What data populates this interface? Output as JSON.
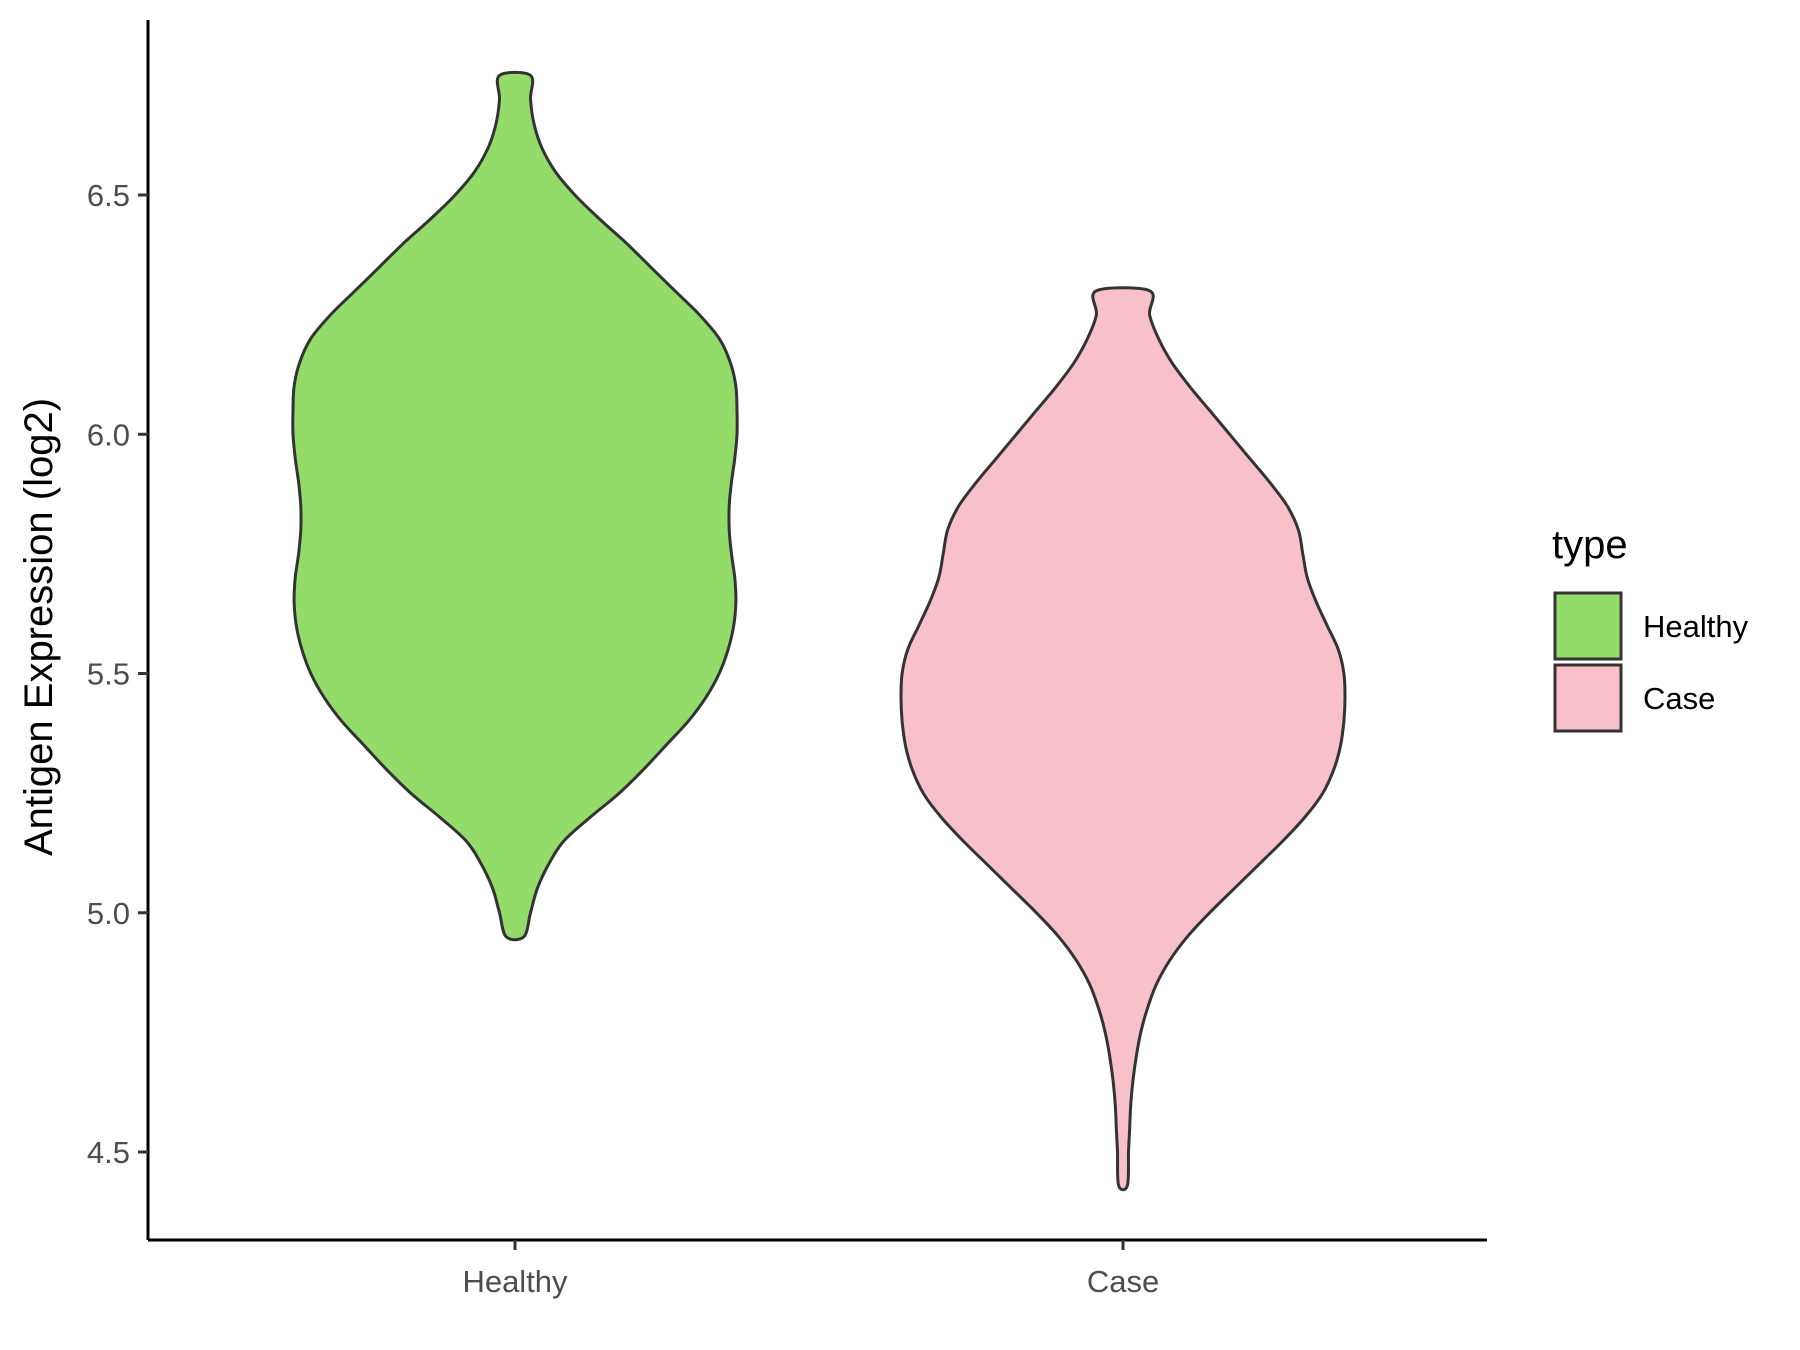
{
  "chart_data": {
    "type": "violin",
    "title": "",
    "xlabel": "",
    "ylabel": "Antigen Expression (log2)",
    "ylim": [
      4.35,
      6.86
    ],
    "yticks": [
      4.5,
      5.0,
      5.5,
      6.0,
      6.5
    ],
    "ytick_labels": [
      "4.5",
      "5.0",
      "5.5",
      "6.0",
      "6.5"
    ],
    "grid": false,
    "categories": [
      "Healthy",
      "Case"
    ],
    "legend": {
      "title": "type",
      "position": "right",
      "entries": [
        {
          "label": "Healthy",
          "color": "#93DC6A"
        },
        {
          "label": "Case",
          "color": "#F8C0CB"
        }
      ]
    },
    "series": [
      {
        "category": "Healthy",
        "color": "#93DC6A",
        "min": 4.95,
        "max": 6.75,
        "density_profile": [
          [
            4.95,
            0.04
          ],
          [
            5.0,
            0.07
          ],
          [
            5.05,
            0.1
          ],
          [
            5.1,
            0.15
          ],
          [
            5.15,
            0.22
          ],
          [
            5.2,
            0.34
          ],
          [
            5.25,
            0.47
          ],
          [
            5.3,
            0.58
          ],
          [
            5.35,
            0.68
          ],
          [
            5.4,
            0.78
          ],
          [
            5.45,
            0.86
          ],
          [
            5.5,
            0.92
          ],
          [
            5.55,
            0.96
          ],
          [
            5.6,
            0.985
          ],
          [
            5.65,
            0.995
          ],
          [
            5.7,
            0.99
          ],
          [
            5.75,
            0.975
          ],
          [
            5.8,
            0.965
          ],
          [
            5.85,
            0.965
          ],
          [
            5.9,
            0.975
          ],
          [
            5.95,
            0.99
          ],
          [
            6.0,
            1.0
          ],
          [
            6.05,
            1.0
          ],
          [
            6.1,
            0.995
          ],
          [
            6.15,
            0.97
          ],
          [
            6.2,
            0.92
          ],
          [
            6.25,
            0.83
          ],
          [
            6.3,
            0.72
          ],
          [
            6.35,
            0.61
          ],
          [
            6.4,
            0.5
          ],
          [
            6.45,
            0.38
          ],
          [
            6.5,
            0.27
          ],
          [
            6.55,
            0.18
          ],
          [
            6.6,
            0.12
          ],
          [
            6.65,
            0.085
          ],
          [
            6.7,
            0.07
          ],
          [
            6.75,
            0.07
          ]
        ]
      },
      {
        "category": "Case",
        "color": "#F8C0CB",
        "min": 4.43,
        "max": 6.3,
        "density_profile": [
          [
            4.43,
            0.02
          ],
          [
            4.5,
            0.025
          ],
          [
            4.55,
            0.03
          ],
          [
            4.6,
            0.035
          ],
          [
            4.65,
            0.045
          ],
          [
            4.7,
            0.06
          ],
          [
            4.75,
            0.08
          ],
          [
            4.8,
            0.11
          ],
          [
            4.85,
            0.15
          ],
          [
            4.9,
            0.21
          ],
          [
            4.95,
            0.29
          ],
          [
            5.0,
            0.39
          ],
          [
            5.05,
            0.5
          ],
          [
            5.1,
            0.61
          ],
          [
            5.15,
            0.72
          ],
          [
            5.2,
            0.82
          ],
          [
            5.25,
            0.9
          ],
          [
            5.3,
            0.95
          ],
          [
            5.35,
            0.98
          ],
          [
            5.4,
            0.995
          ],
          [
            5.45,
            1.0
          ],
          [
            5.5,
            0.995
          ],
          [
            5.55,
            0.97
          ],
          [
            5.6,
            0.92
          ],
          [
            5.65,
            0.87
          ],
          [
            5.7,
            0.83
          ],
          [
            5.75,
            0.81
          ],
          [
            5.8,
            0.79
          ],
          [
            5.85,
            0.74
          ],
          [
            5.9,
            0.66
          ],
          [
            5.95,
            0.57
          ],
          [
            6.0,
            0.48
          ],
          [
            6.05,
            0.39
          ],
          [
            6.1,
            0.3
          ],
          [
            6.15,
            0.22
          ],
          [
            6.2,
            0.16
          ],
          [
            6.25,
            0.12
          ],
          [
            6.3,
            0.12
          ]
        ]
      }
    ]
  }
}
